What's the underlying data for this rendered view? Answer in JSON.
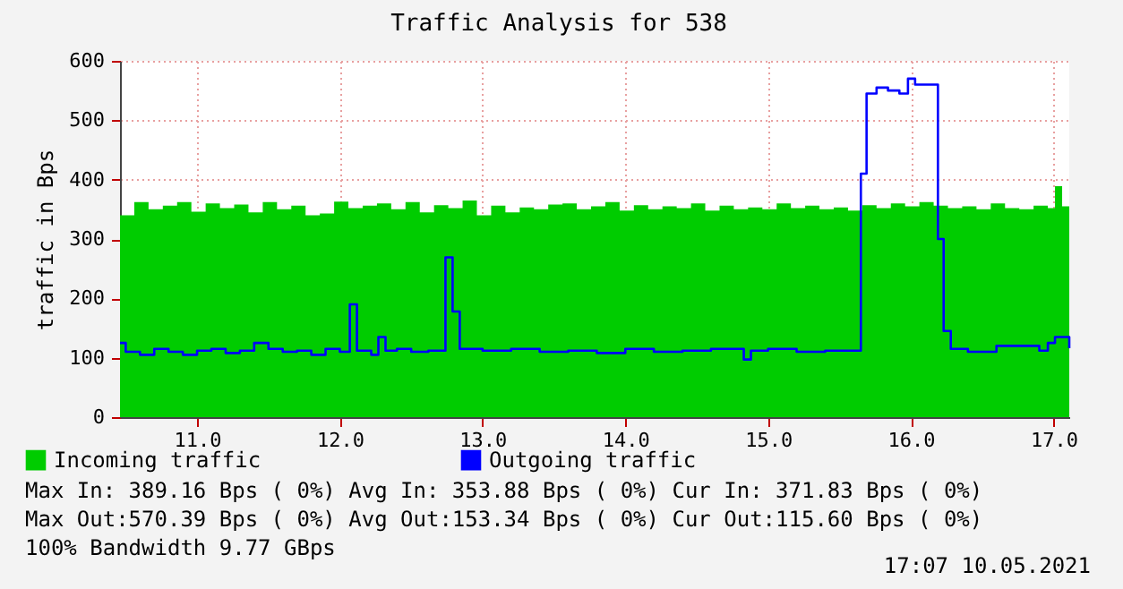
{
  "chart_data": {
    "type": "area",
    "title": "Traffic Analysis for 538",
    "ylabel": "traffic in Bps",
    "xlim": [
      10.46,
      17.11
    ],
    "xticks": [
      {
        "value": 11,
        "label": "11.0"
      },
      {
        "value": 12,
        "label": "12.0"
      },
      {
        "value": 13,
        "label": "13.0"
      },
      {
        "value": 14,
        "label": "14.0"
      },
      {
        "value": 15,
        "label": "15.0"
      },
      {
        "value": 16,
        "label": "16.0"
      },
      {
        "value": 17,
        "label": "17.0"
      }
    ],
    "ylim": [
      0,
      600
    ],
    "yticks": [
      0,
      100,
      200,
      300,
      400,
      500,
      600
    ],
    "grid": true,
    "legend": "bottom",
    "series": [
      {
        "name": "Incoming traffic",
        "color": "#00cc00",
        "x": [
          10.46,
          10.56,
          10.66,
          10.76,
          10.86,
          10.96,
          11.06,
          11.16,
          11.26,
          11.36,
          11.46,
          11.56,
          11.66,
          11.76,
          11.86,
          11.96,
          12.06,
          12.16,
          12.26,
          12.36,
          12.46,
          12.56,
          12.66,
          12.76,
          12.86,
          12.96,
          13.06,
          13.16,
          13.26,
          13.36,
          13.46,
          13.56,
          13.66,
          13.76,
          13.86,
          13.96,
          14.06,
          14.16,
          14.26,
          14.36,
          14.46,
          14.56,
          14.66,
          14.76,
          14.86,
          14.96,
          15.06,
          15.16,
          15.26,
          15.36,
          15.46,
          15.56,
          15.66,
          15.76,
          15.86,
          15.96,
          16.06,
          16.16,
          16.26,
          16.36,
          16.46,
          16.56,
          16.66,
          16.76,
          16.86,
          16.96,
          17.01,
          17.06,
          17.11
        ],
        "values": [
          340,
          362,
          350,
          356,
          362,
          346,
          360,
          352,
          358,
          345,
          362,
          350,
          356,
          340,
          343,
          363,
          352,
          356,
          360,
          350,
          362,
          345,
          357,
          352,
          365,
          340,
          356,
          345,
          353,
          350,
          358,
          360,
          350,
          355,
          362,
          348,
          357,
          350,
          355,
          352,
          360,
          348,
          356,
          350,
          353,
          350,
          360,
          352,
          356,
          350,
          353,
          348,
          357,
          352,
          360,
          355,
          362,
          356,
          352,
          355,
          350,
          360,
          352,
          350,
          356,
          352,
          389,
          355,
          372
        ]
      },
      {
        "name": "Outgoing traffic",
        "color": "#0000ff",
        "type": "step",
        "x": [
          10.46,
          10.5,
          10.6,
          10.7,
          10.8,
          10.9,
          11.0,
          11.1,
          11.2,
          11.3,
          11.4,
          11.5,
          11.6,
          11.7,
          11.8,
          11.9,
          12.0,
          12.07,
          12.12,
          12.22,
          12.27,
          12.32,
          12.4,
          12.5,
          12.62,
          12.74,
          12.79,
          12.84,
          13.0,
          13.2,
          13.4,
          13.6,
          13.8,
          14.0,
          14.2,
          14.4,
          14.6,
          14.83,
          14.88,
          15.0,
          15.2,
          15.4,
          15.65,
          15.69,
          15.76,
          15.84,
          15.92,
          15.98,
          16.03,
          16.19,
          16.23,
          16.28,
          16.4,
          16.6,
          16.9,
          16.96,
          17.01,
          17.11
        ],
        "values": [
          125,
          110,
          105,
          115,
          110,
          105,
          112,
          115,
          108,
          112,
          125,
          115,
          110,
          112,
          105,
          115,
          110,
          190,
          112,
          105,
          135,
          112,
          115,
          110,
          112,
          269,
          178,
          115,
          112,
          115,
          110,
          112,
          108,
          115,
          110,
          112,
          115,
          97,
          112,
          115,
          110,
          112,
          410,
          545,
          555,
          550,
          545,
          570,
          560,
          300,
          145,
          115,
          110,
          120,
          112,
          125,
          135,
          116
        ]
      }
    ],
    "annotations": [
      "Max In: 389.16  Bps ( 0%)  Avg In: 353.88  Bps ( 0%)  Cur In: 371.83  Bps ( 0%)",
      "Max Out:570.39  Bps ( 0%)  Avg Out:153.34  Bps ( 0%)  Cur Out:115.60  Bps ( 0%)",
      "100% Bandwidth 9.77 GBps",
      "17:07 10.05.2021"
    ]
  }
}
